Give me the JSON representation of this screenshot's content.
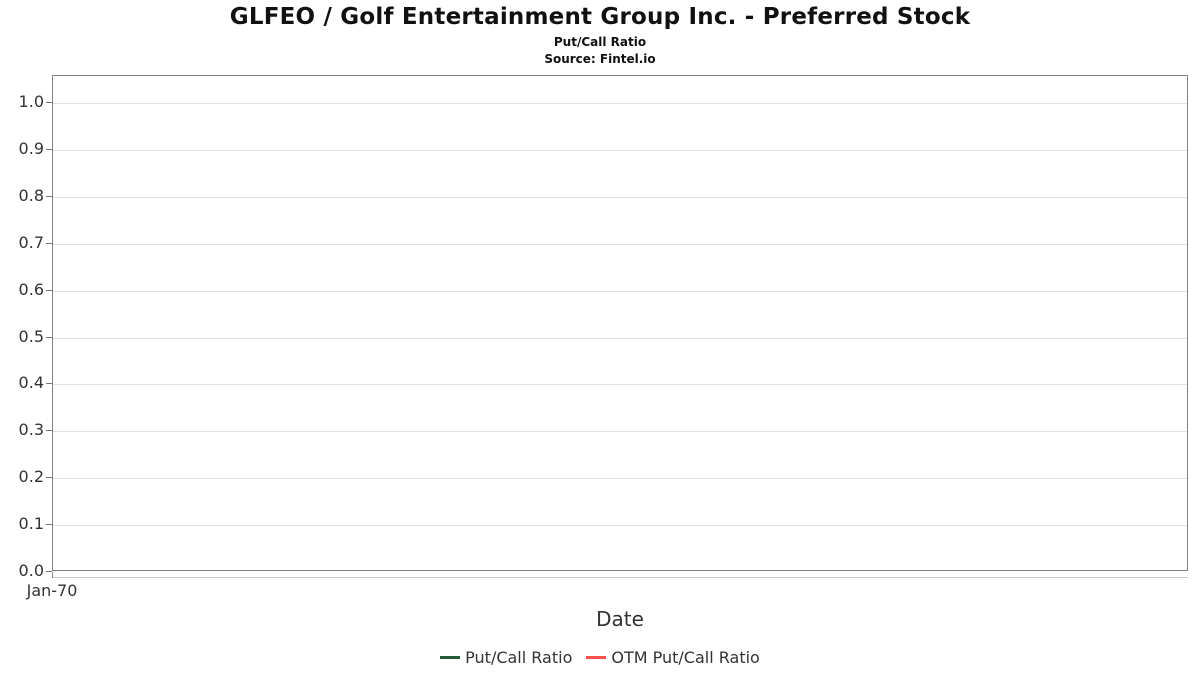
{
  "chart_data": {
    "type": "line",
    "title": "GLFEO / Golf Entertainment Group Inc. - Preferred Stock",
    "subtitle": "Put/Call Ratio",
    "source": "Source: Fintel.io",
    "xlabel": "Date",
    "x_tick_labels": [
      "Jan-70"
    ],
    "y_tick_labels": [
      "0.0",
      "0.1",
      "0.2",
      "0.3",
      "0.4",
      "0.5",
      "0.6",
      "0.7",
      "0.8",
      "0.9",
      "1.0"
    ],
    "ylim": [
      0.0,
      1.06
    ],
    "grid": "horizontal-only",
    "gridline_color": "#e2e2e2",
    "border_color": "#808080",
    "background_color": "#ffffff",
    "legend_position": "bottom",
    "series": [
      {
        "name": "Put/Call Ratio",
        "color": "#235a38",
        "values": []
      },
      {
        "name": "OTM Put/Call Ratio",
        "color": "#f9504b",
        "values": []
      }
    ]
  }
}
